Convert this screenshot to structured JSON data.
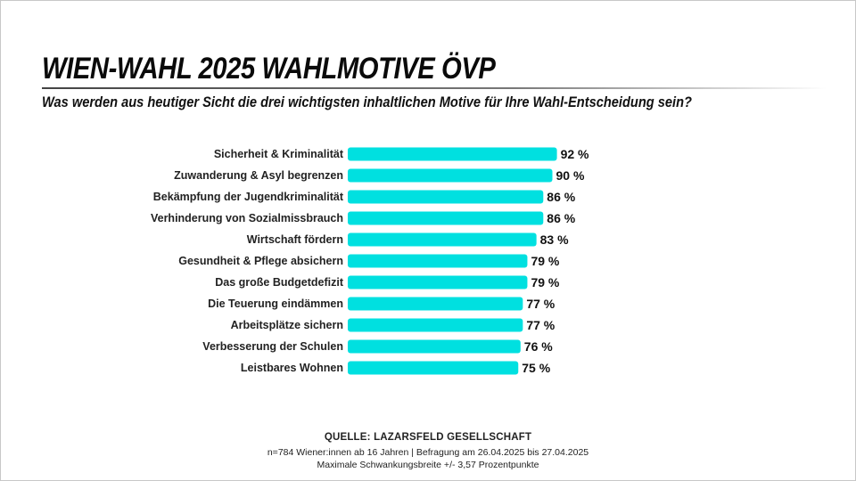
{
  "header": {
    "title": "WIEN-WAHL 2025 WAHLMOTIVE ÖVP",
    "subtitle": "Was werden aus heutiger Sicht die drei wichtigsten inhaltlichen Motive für Ihre Wahl-Entscheidung sein?"
  },
  "chart_data": {
    "type": "bar",
    "orientation": "horizontal",
    "title": "WIEN-WAHL 2025 WAHLMOTIVE ÖVP",
    "xlabel": "",
    "ylabel": "",
    "unit": "%",
    "xlim": [
      0,
      100
    ],
    "grid": false,
    "categories": [
      "Sicherheit & Kriminalität",
      "Zuwanderung & Asyl begrenzen",
      "Bekämpfung der Jugendkriminalität",
      "Verhinderung von Sozialmissbrauch",
      "Wirtschaft fördern",
      "Gesundheit & Pflege absichern",
      "Das große Budgetdefizit",
      "Die Teuerung eindämmen",
      "Arbeitsplätze sichern",
      "Verbesserung der Schulen",
      "Leistbares Wohnen"
    ],
    "values": [
      92,
      90,
      86,
      86,
      83,
      79,
      79,
      77,
      77,
      76,
      75
    ],
    "value_labels": [
      "92 %",
      "90 %",
      "86 %",
      "86 %",
      "83 %",
      "79 %",
      "79 %",
      "77 %",
      "77 %",
      "76 %",
      "75 %"
    ],
    "bar_color": "#00e0e0"
  },
  "footer": {
    "source": "QUELLE: LAZARSFELD GESELLSCHAFT",
    "sample": "n=784 Wiener:innen ab 16 Jahren | Befragung am 26.04.2025 bis 27.04.2025",
    "margin_of_error": "Maximale Schwankungsbreite +/- 3,57 Prozentpunkte"
  }
}
